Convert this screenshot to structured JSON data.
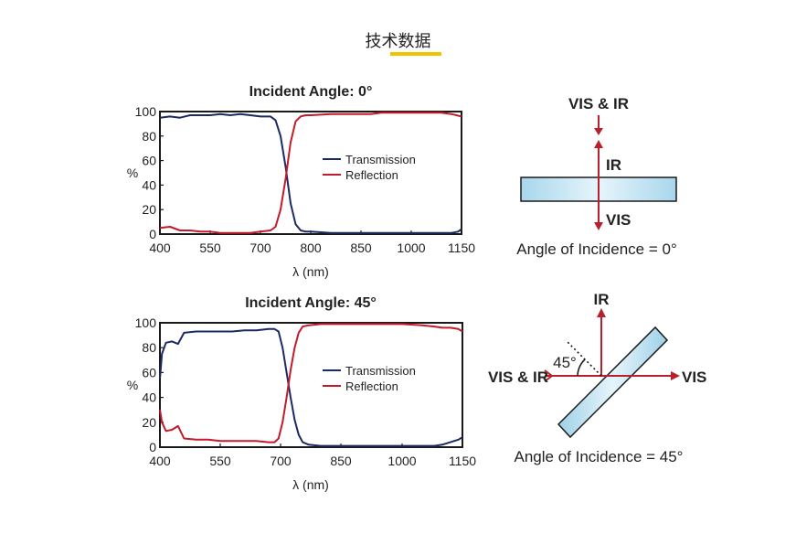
{
  "page": {
    "heading": "技术数据",
    "accent_color": "#f2c400"
  },
  "chart_data": [
    {
      "type": "line",
      "title": "Incident Angle: 0°",
      "xlabel": "λ (nm)",
      "ylabel": "%",
      "xticks": [
        "400",
        "550",
        "700",
        "800",
        "850",
        "1000",
        "1150"
      ],
      "yticks": [
        "0",
        "20",
        "40",
        "60",
        "80",
        "100"
      ],
      "ylim": [
        0,
        100
      ],
      "series": [
        {
          "name": "Transmission",
          "color": "#1c2a63",
          "points": [
            [
              400,
              95
            ],
            [
              430,
              96
            ],
            [
              460,
              95
            ],
            [
              490,
              97
            ],
            [
              520,
              97
            ],
            [
              550,
              97
            ],
            [
              580,
              98
            ],
            [
              610,
              97
            ],
            [
              640,
              98
            ],
            [
              670,
              97
            ],
            [
              700,
              96
            ],
            [
              720,
              96
            ],
            [
              730,
              93
            ],
            [
              740,
              80
            ],
            [
              750,
              55
            ],
            [
              760,
              25
            ],
            [
              770,
              8
            ],
            [
              780,
              3
            ],
            [
              790,
              2
            ],
            [
              800,
              2
            ],
            [
              820,
              1
            ],
            [
              850,
              1
            ],
            [
              880,
              1
            ],
            [
              910,
              1
            ],
            [
              940,
              1
            ],
            [
              970,
              1
            ],
            [
              1000,
              1
            ],
            [
              1030,
              1
            ],
            [
              1060,
              1
            ],
            [
              1090,
              1
            ],
            [
              1120,
              1
            ],
            [
              1140,
              2
            ],
            [
              1150,
              4
            ]
          ]
        },
        {
          "name": "Reflection",
          "color": "#c41a2a",
          "points": [
            [
              400,
              5
            ],
            [
              430,
              6
            ],
            [
              460,
              3
            ],
            [
              490,
              3
            ],
            [
              520,
              2
            ],
            [
              550,
              2
            ],
            [
              580,
              1
            ],
            [
              610,
              1
            ],
            [
              640,
              1
            ],
            [
              670,
              1
            ],
            [
              700,
              2
            ],
            [
              720,
              3
            ],
            [
              730,
              6
            ],
            [
              740,
              20
            ],
            [
              750,
              45
            ],
            [
              760,
              75
            ],
            [
              770,
              92
            ],
            [
              780,
              96
            ],
            [
              790,
              97
            ],
            [
              800,
              97
            ],
            [
              820,
              98
            ],
            [
              850,
              98
            ],
            [
              880,
              98
            ],
            [
              910,
              99
            ],
            [
              940,
              99
            ],
            [
              970,
              99
            ],
            [
              1000,
              99
            ],
            [
              1030,
              99
            ],
            [
              1060,
              99
            ],
            [
              1090,
              99
            ],
            [
              1120,
              98
            ],
            [
              1150,
              96
            ]
          ]
        }
      ]
    },
    {
      "type": "line",
      "title": "Incident Angle: 45°",
      "xlabel": "λ (nm)",
      "ylabel": "%",
      "xticks": [
        "400",
        "550",
        "700",
        "850",
        "1000",
        "1150"
      ],
      "yticks": [
        "0",
        "20",
        "40",
        "60",
        "80",
        "100"
      ],
      "ylim": [
        0,
        100
      ],
      "series": [
        {
          "name": "Transmission",
          "color": "#1c2a63",
          "points": [
            [
              400,
              55
            ],
            [
              405,
              75
            ],
            [
              415,
              84
            ],
            [
              430,
              85
            ],
            [
              445,
              83
            ],
            [
              460,
              92
            ],
            [
              490,
              93
            ],
            [
              520,
              93
            ],
            [
              550,
              93
            ],
            [
              580,
              93
            ],
            [
              610,
              94
            ],
            [
              640,
              94
            ],
            [
              670,
              95
            ],
            [
              685,
              95
            ],
            [
              695,
              93
            ],
            [
              705,
              80
            ],
            [
              715,
              60
            ],
            [
              725,
              40
            ],
            [
              735,
              22
            ],
            [
              745,
              10
            ],
            [
              755,
              4
            ],
            [
              770,
              2
            ],
            [
              800,
              1
            ],
            [
              850,
              1
            ],
            [
              900,
              1
            ],
            [
              950,
              1
            ],
            [
              1000,
              1
            ],
            [
              1050,
              1
            ],
            [
              1080,
              1
            ],
            [
              1100,
              2
            ],
            [
              1120,
              4
            ],
            [
              1140,
              6
            ],
            [
              1150,
              8
            ]
          ]
        },
        {
          "name": "Reflection",
          "color": "#c41a2a",
          "points": [
            [
              400,
              30
            ],
            [
              405,
              20
            ],
            [
              415,
              13
            ],
            [
              430,
              14
            ],
            [
              445,
              17
            ],
            [
              460,
              7
            ],
            [
              490,
              6
            ],
            [
              520,
              6
            ],
            [
              550,
              5
            ],
            [
              580,
              5
            ],
            [
              610,
              5
            ],
            [
              640,
              5
            ],
            [
              670,
              4
            ],
            [
              685,
              4
            ],
            [
              695,
              7
            ],
            [
              705,
              20
            ],
            [
              715,
              40
            ],
            [
              725,
              62
            ],
            [
              735,
              80
            ],
            [
              745,
              92
            ],
            [
              755,
              97
            ],
            [
              770,
              98
            ],
            [
              800,
              99
            ],
            [
              850,
              99
            ],
            [
              900,
              99
            ],
            [
              950,
              99
            ],
            [
              1000,
              99
            ],
            [
              1050,
              98
            ],
            [
              1080,
              97
            ],
            [
              1100,
              96
            ],
            [
              1120,
              96
            ],
            [
              1140,
              95
            ],
            [
              1150,
              93
            ]
          ]
        }
      ]
    }
  ],
  "diagrams": {
    "top": {
      "label_top": "VIS & IR",
      "label_reflected": "IR",
      "label_transmitted": "VIS",
      "caption": "Angle of Incidence = 0°"
    },
    "bottom": {
      "label_incoming": "VIS & IR",
      "label_reflected": "IR",
      "label_transmitted": "VIS",
      "angle_label": "45°",
      "caption": "Angle of Incidence = 45°"
    },
    "ray_color": "#b9202e",
    "glass_color": "#cfe9f4"
  }
}
